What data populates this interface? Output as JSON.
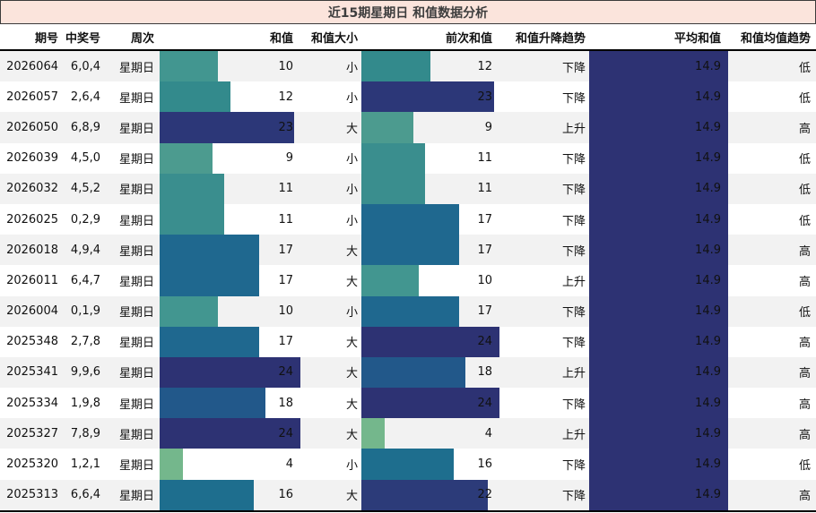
{
  "title": "近15期星期日 和值数据分析",
  "table": {
    "columns": [
      "期号",
      "中奖号",
      "周次",
      "和值",
      "和值大小",
      "前次和值",
      "和值升降趋势",
      "平均和值",
      "和值均值趋势"
    ],
    "bar_scale": {
      "sum_max": 24,
      "prev_max": 24,
      "avg_max": 14.9
    },
    "rows": [
      {
        "period": "2026064",
        "numbers": "6,0,4",
        "week": "星期日",
        "sum": {
          "value": 10,
          "color": "#429690"
        },
        "size": "小",
        "prev": {
          "value": 12,
          "color": "#338a8c"
        },
        "trend": "下降",
        "avg": {
          "value": 14.9,
          "color": "#2d3273"
        },
        "avg_trend": "低"
      },
      {
        "period": "2026057",
        "numbers": "2,6,4",
        "week": "星期日",
        "sum": {
          "value": 12,
          "color": "#338a8c"
        },
        "size": "小",
        "prev": {
          "value": 23,
          "color": "#2c3778"
        },
        "trend": "下降",
        "avg": {
          "value": 14.9,
          "color": "#2d3273"
        },
        "avg_trend": "低"
      },
      {
        "period": "2026050",
        "numbers": "6,8,9",
        "week": "星期日",
        "sum": {
          "value": 23,
          "color": "#2c3778"
        },
        "size": "大",
        "prev": {
          "value": 9,
          "color": "#4c9b8f"
        },
        "trend": "上升",
        "avg": {
          "value": 14.9,
          "color": "#2d3273"
        },
        "avg_trend": "高"
      },
      {
        "period": "2026039",
        "numbers": "4,5,0",
        "week": "星期日",
        "sum": {
          "value": 9,
          "color": "#4c9b8f"
        },
        "size": "小",
        "prev": {
          "value": 11,
          "color": "#3a8e8e"
        },
        "trend": "下降",
        "avg": {
          "value": 14.9,
          "color": "#2d3273"
        },
        "avg_trend": "低"
      },
      {
        "period": "2026032",
        "numbers": "4,5,2",
        "week": "星期日",
        "sum": {
          "value": 11,
          "color": "#3a8e8e"
        },
        "size": "小",
        "prev": {
          "value": 11,
          "color": "#3a8e8e"
        },
        "trend": "下降",
        "avg": {
          "value": 14.9,
          "color": "#2d3273"
        },
        "avg_trend": "低"
      },
      {
        "period": "2026025",
        "numbers": "0,2,9",
        "week": "星期日",
        "sum": {
          "value": 11,
          "color": "#3a8e8e"
        },
        "size": "小",
        "prev": {
          "value": 17,
          "color": "#1f688f"
        },
        "trend": "下降",
        "avg": {
          "value": 14.9,
          "color": "#2d3273"
        },
        "avg_trend": "低"
      },
      {
        "period": "2026018",
        "numbers": "4,9,4",
        "week": "星期日",
        "sum": {
          "value": 17,
          "color": "#1f688f"
        },
        "size": "大",
        "prev": {
          "value": 17,
          "color": "#1f688f"
        },
        "trend": "下降",
        "avg": {
          "value": 14.9,
          "color": "#2d3273"
        },
        "avg_trend": "高"
      },
      {
        "period": "2026011",
        "numbers": "6,4,7",
        "week": "星期日",
        "sum": {
          "value": 17,
          "color": "#1f688f"
        },
        "size": "大",
        "prev": {
          "value": 10,
          "color": "#429690"
        },
        "trend": "上升",
        "avg": {
          "value": 14.9,
          "color": "#2d3273"
        },
        "avg_trend": "高"
      },
      {
        "period": "2026004",
        "numbers": "0,1,9",
        "week": "星期日",
        "sum": {
          "value": 10,
          "color": "#429690"
        },
        "size": "小",
        "prev": {
          "value": 17,
          "color": "#1f688f"
        },
        "trend": "下降",
        "avg": {
          "value": 14.9,
          "color": "#2d3273"
        },
        "avg_trend": "低"
      },
      {
        "period": "2025348",
        "numbers": "2,7,8",
        "week": "星期日",
        "sum": {
          "value": 17,
          "color": "#1f688f"
        },
        "size": "大",
        "prev": {
          "value": 24,
          "color": "#2d3273"
        },
        "trend": "下降",
        "avg": {
          "value": 14.9,
          "color": "#2d3273"
        },
        "avg_trend": "高"
      },
      {
        "period": "2025341",
        "numbers": "9,9,6",
        "week": "星期日",
        "sum": {
          "value": 24,
          "color": "#2d3273"
        },
        "size": "大",
        "prev": {
          "value": 18,
          "color": "#22588a"
        },
        "trend": "上升",
        "avg": {
          "value": 14.9,
          "color": "#2d3273"
        },
        "avg_trend": "高"
      },
      {
        "period": "2025334",
        "numbers": "1,9,8",
        "week": "星期日",
        "sum": {
          "value": 18,
          "color": "#22588a"
        },
        "size": "大",
        "prev": {
          "value": 24,
          "color": "#2d3273"
        },
        "trend": "下降",
        "avg": {
          "value": 14.9,
          "color": "#2d3273"
        },
        "avg_trend": "高"
      },
      {
        "period": "2025327",
        "numbers": "7,8,9",
        "week": "星期日",
        "sum": {
          "value": 24,
          "color": "#2d3273"
        },
        "size": "大",
        "prev": {
          "value": 4,
          "color": "#74b78c"
        },
        "trend": "上升",
        "avg": {
          "value": 14.9,
          "color": "#2d3273"
        },
        "avg_trend": "高"
      },
      {
        "period": "2025320",
        "numbers": "1,2,1",
        "week": "星期日",
        "sum": {
          "value": 4,
          "color": "#74b78c"
        },
        "size": "小",
        "prev": {
          "value": 16,
          "color": "#1e6e8e"
        },
        "trend": "下降",
        "avg": {
          "value": 14.9,
          "color": "#2d3273"
        },
        "avg_trend": "低"
      },
      {
        "period": "2025313",
        "numbers": "6,6,4",
        "week": "星期日",
        "sum": {
          "value": 16,
          "color": "#1e6e8e"
        },
        "size": "大",
        "prev": {
          "value": 22,
          "color": "#2c3b79"
        },
        "trend": "下降",
        "avg": {
          "value": 14.9,
          "color": "#2d3273"
        },
        "avg_trend": "高"
      }
    ]
  },
  "colors": {
    "title_bg": "#fbe4dc",
    "title_border": "#3b3b3b",
    "stripe": "#f2f2f2",
    "navy": "#2d3273",
    "teal": "#429690",
    "light_green": "#74b78c"
  },
  "chart_data": {
    "type": "table",
    "title": "近15期星期日 和值数据分析",
    "columns": [
      "期号",
      "中奖号",
      "周次",
      "和值",
      "和值大小",
      "前次和值",
      "和值升降趋势",
      "平均和值",
      "和值均值趋势"
    ],
    "rows": [
      [
        "2026064",
        "6,0,4",
        "星期日",
        10,
        "小",
        12,
        "下降",
        14.9,
        "低"
      ],
      [
        "2026057",
        "2,6,4",
        "星期日",
        12,
        "小",
        23,
        "下降",
        14.9,
        "低"
      ],
      [
        "2026050",
        "6,8,9",
        "星期日",
        23,
        "大",
        9,
        "上升",
        14.9,
        "高"
      ],
      [
        "2026039",
        "4,5,0",
        "星期日",
        9,
        "小",
        11,
        "下降",
        14.9,
        "低"
      ],
      [
        "2026032",
        "4,5,2",
        "星期日",
        11,
        "小",
        11,
        "下降",
        14.9,
        "低"
      ],
      [
        "2026025",
        "0,2,9",
        "星期日",
        11,
        "小",
        17,
        "下降",
        14.9,
        "低"
      ],
      [
        "2026018",
        "4,9,4",
        "星期日",
        17,
        "大",
        17,
        "下降",
        14.9,
        "高"
      ],
      [
        "2026011",
        "6,4,7",
        "星期日",
        17,
        "大",
        10,
        "上升",
        14.9,
        "高"
      ],
      [
        "2026004",
        "0,1,9",
        "星期日",
        10,
        "小",
        17,
        "下降",
        14.9,
        "低"
      ],
      [
        "2025348",
        "2,7,8",
        "星期日",
        17,
        "大",
        24,
        "下降",
        14.9,
        "高"
      ],
      [
        "2025341",
        "9,9,6",
        "星期日",
        24,
        "大",
        18,
        "上升",
        14.9,
        "高"
      ],
      [
        "2025334",
        "1,9,8",
        "星期日",
        18,
        "大",
        24,
        "下降",
        14.9,
        "高"
      ],
      [
        "2025327",
        "7,8,9",
        "星期日",
        24,
        "大",
        4,
        "上升",
        14.9,
        "高"
      ],
      [
        "2025320",
        "1,2,1",
        "星期日",
        4,
        "小",
        16,
        "下降",
        14.9,
        "低"
      ],
      [
        "2025313",
        "6,6,4",
        "星期日",
        16,
        "大",
        22,
        "下降",
        14.9,
        "高"
      ]
    ],
    "bar_columns": {
      "和值": {
        "max": 24
      },
      "前次和值": {
        "max": 24
      },
      "平均和值": {
        "max": 14.9
      }
    },
    "layout": {
      "striped_rows": true,
      "bars_inline": true,
      "legend": "none"
    }
  }
}
